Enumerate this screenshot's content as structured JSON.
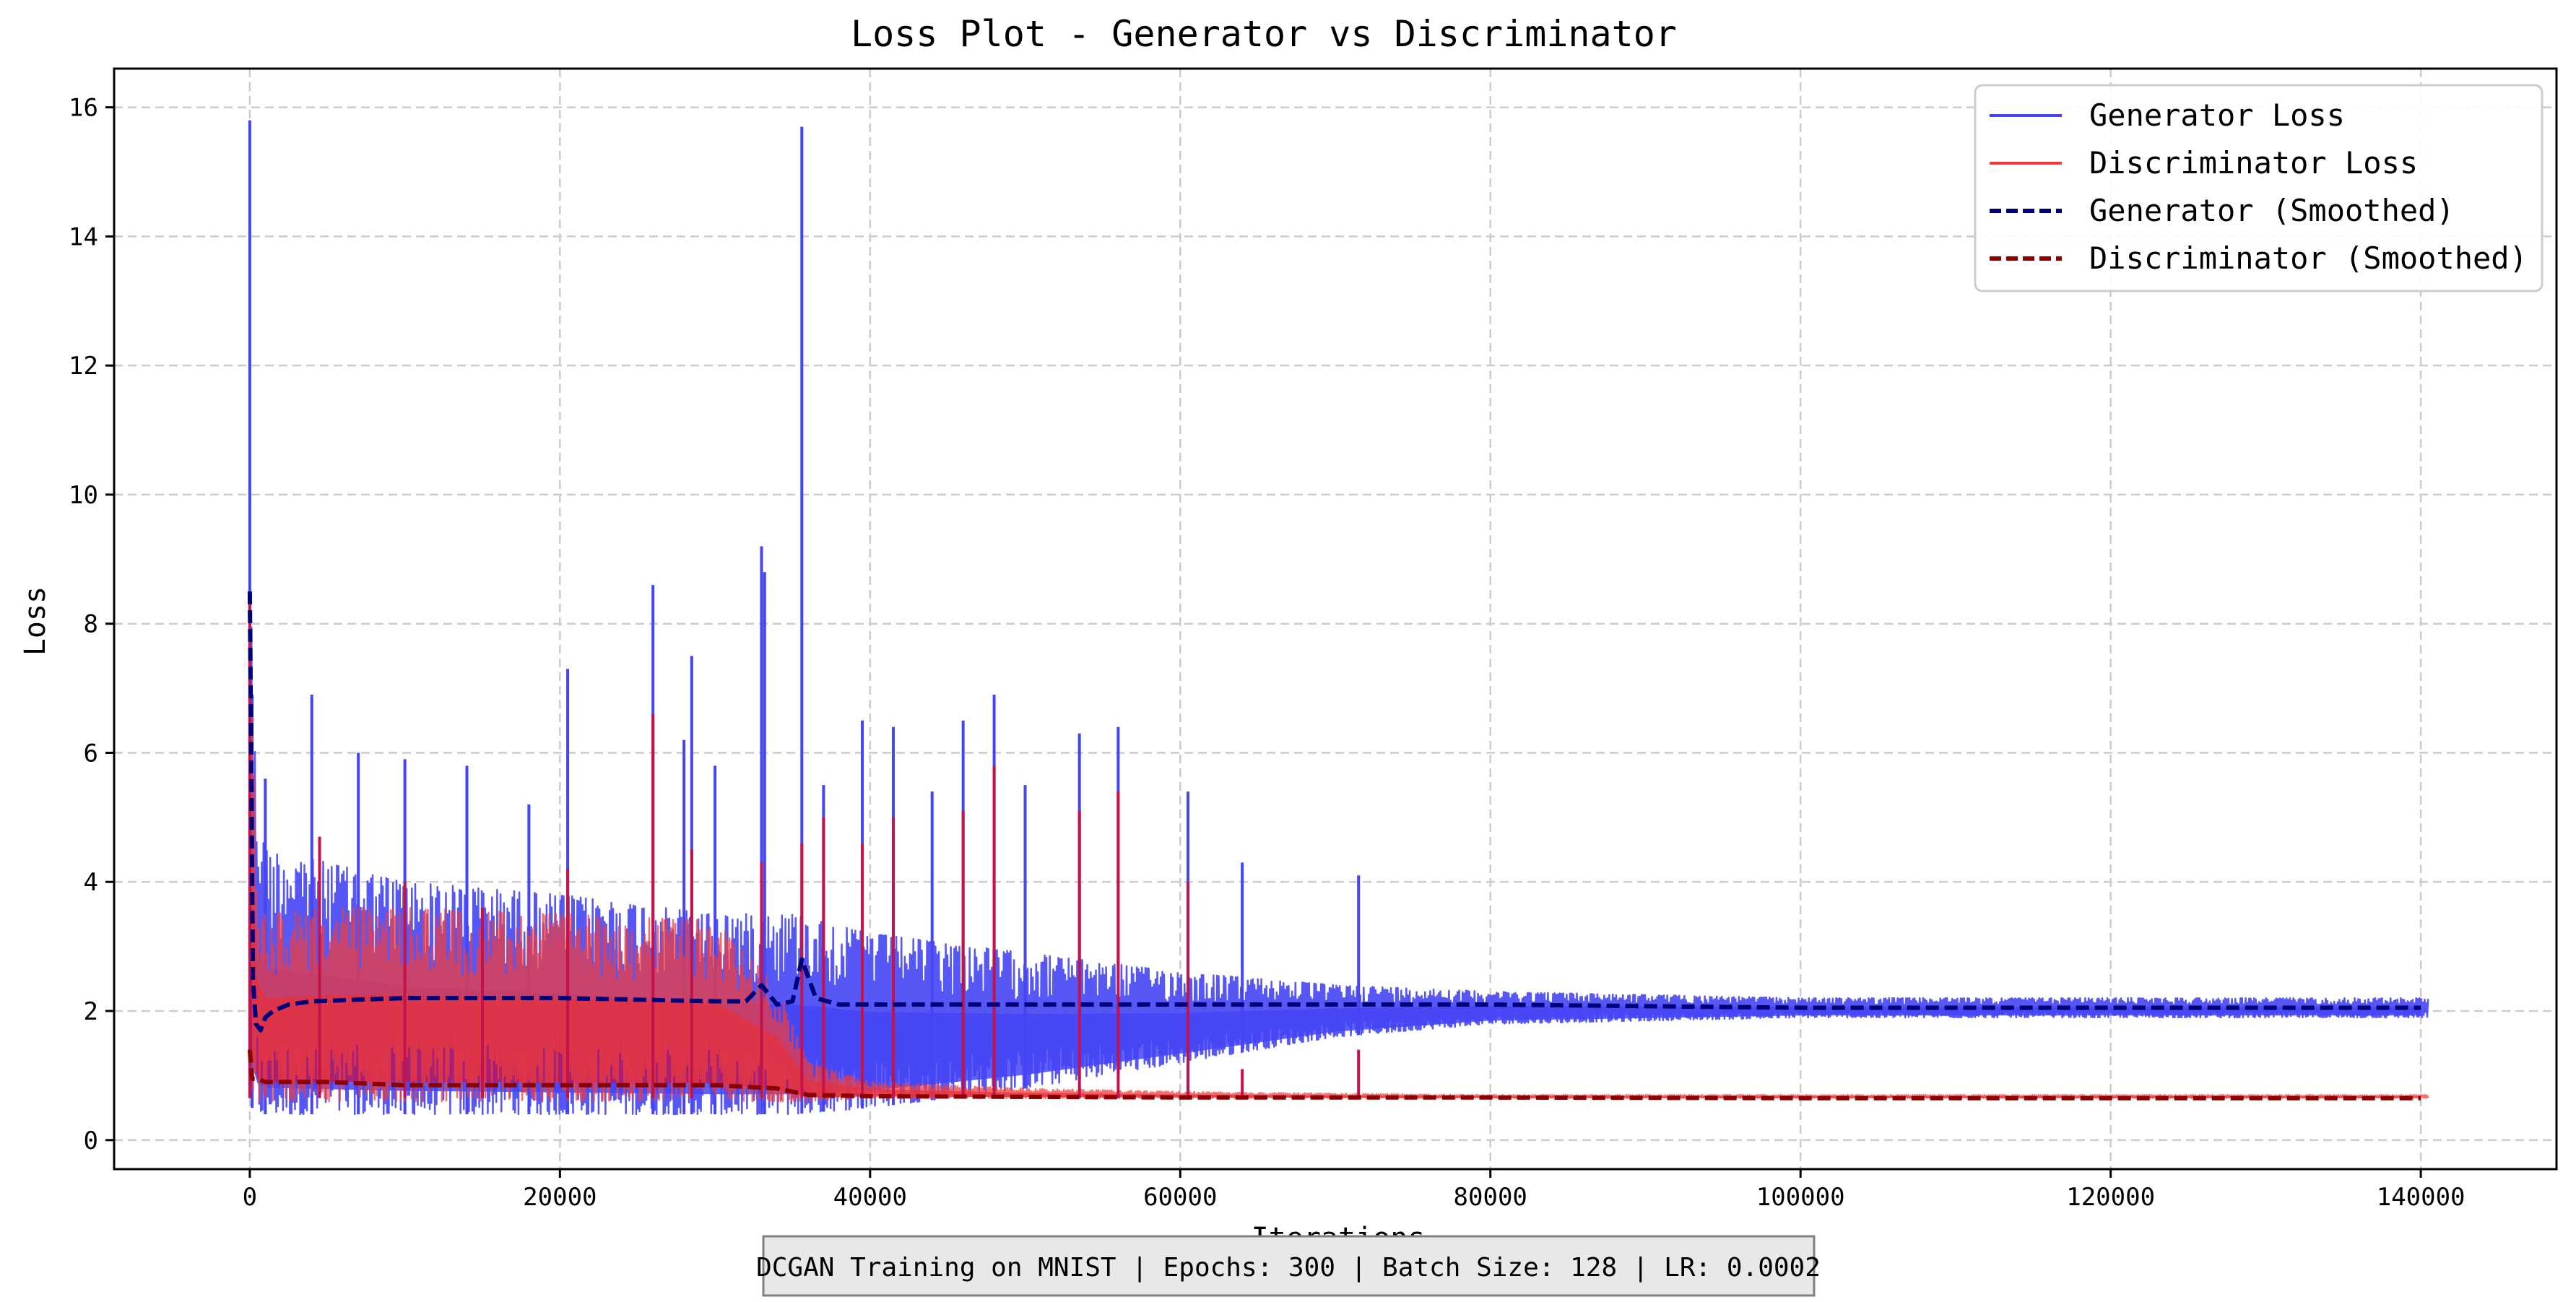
{
  "chart_data": {
    "type": "line",
    "title": "Loss Plot - Generator vs Discriminator",
    "xlabel": "Iterations",
    "ylabel": "Loss",
    "xlim": [
      -8750,
      148750
    ],
    "ylim": [
      -0.45,
      16.6
    ],
    "xticks": [
      0,
      20000,
      40000,
      60000,
      80000,
      100000,
      120000,
      140000
    ],
    "yticks": [
      0,
      2,
      4,
      6,
      8,
      10,
      12,
      14,
      16
    ],
    "grid": true,
    "legend_position": "top-right",
    "footer": "DCGAN Training on MNIST | Epochs: 300 | Batch Size: 128 | LR: 0.0002",
    "colors": {
      "generator": "#4545f5",
      "discriminator": "#f03c3c",
      "generator_smoothed": "#00007a",
      "discriminator_smoothed": "#8b0000",
      "overlap": "#c4124a",
      "grid": "#cccccc"
    },
    "series": [
      {
        "name": "Generator Loss",
        "style": "solid",
        "envelope": {
          "x": [
            0,
            150,
            500,
            1000,
            5000,
            10000,
            20000,
            30000,
            35000,
            40000,
            50000,
            60000,
            70000,
            80000,
            100000,
            120000,
            140000
          ],
          "low": [
            1.0,
            0.5,
            0.4,
            0.4,
            0.4,
            0.4,
            0.4,
            0.4,
            0.4,
            0.5,
            0.8,
            1.2,
            1.6,
            1.8,
            1.9,
            1.9,
            1.9
          ],
          "high": [
            15.0,
            7.0,
            5.2,
            4.5,
            4.3,
            4.0,
            3.8,
            3.5,
            3.5,
            3.2,
            2.9,
            2.6,
            2.4,
            2.3,
            2.2,
            2.2,
            2.2
          ]
        },
        "spikes": [
          [
            0,
            15.8
          ],
          [
            150,
            6.9
          ],
          [
            1000,
            5.6
          ],
          [
            4000,
            6.9
          ],
          [
            7000,
            6.0
          ],
          [
            10000,
            5.9
          ],
          [
            14000,
            5.8
          ],
          [
            18000,
            5.2
          ],
          [
            20500,
            7.3
          ],
          [
            26000,
            8.6
          ],
          [
            28000,
            6.2
          ],
          [
            28500,
            7.5
          ],
          [
            30000,
            5.8
          ],
          [
            33000,
            9.2
          ],
          [
            33200,
            8.8
          ],
          [
            35600,
            15.7
          ],
          [
            37000,
            5.5
          ],
          [
            39500,
            6.5
          ],
          [
            41500,
            6.4
          ],
          [
            44000,
            5.4
          ],
          [
            46000,
            6.5
          ],
          [
            48000,
            6.9
          ],
          [
            50000,
            5.5
          ],
          [
            53500,
            6.3
          ],
          [
            56000,
            6.4
          ],
          [
            60500,
            5.4
          ],
          [
            64000,
            4.3
          ],
          [
            71500,
            4.1
          ]
        ]
      },
      {
        "name": "Discriminator Loss",
        "style": "solid",
        "envelope": {
          "x": [
            0,
            500,
            1000,
            5000,
            10000,
            20000,
            30000,
            34000,
            36000,
            40000,
            50000,
            60000,
            70000,
            80000,
            100000,
            140000
          ],
          "low": [
            0.7,
            0.6,
            0.6,
            0.6,
            0.6,
            0.6,
            0.6,
            0.6,
            0.6,
            0.65,
            0.65,
            0.65,
            0.65,
            0.65,
            0.65,
            0.65
          ],
          "high": [
            8.5,
            4.0,
            3.5,
            3.6,
            3.6,
            3.5,
            3.4,
            2.4,
            1.2,
            0.9,
            0.8,
            0.75,
            0.72,
            0.7,
            0.7,
            0.7
          ]
        },
        "spikes": [
          [
            0,
            8.5
          ],
          [
            4500,
            4.7
          ],
          [
            10000,
            4.0
          ],
          [
            15000,
            3.6
          ],
          [
            20500,
            4.2
          ],
          [
            26000,
            6.6
          ],
          [
            28500,
            4.5
          ],
          [
            33000,
            4.3
          ],
          [
            35600,
            4.6
          ],
          [
            37000,
            5.0
          ],
          [
            39500,
            4.6
          ],
          [
            41500,
            5.0
          ],
          [
            46000,
            5.1
          ],
          [
            48000,
            5.8
          ],
          [
            53500,
            5.1
          ],
          [
            56000,
            5.4
          ],
          [
            60500,
            4.0
          ],
          [
            64000,
            1.1
          ],
          [
            71500,
            1.4
          ]
        ]
      },
      {
        "name": "Generator (Smoothed)",
        "style": "dashed",
        "x": [
          0,
          100,
          200,
          400,
          700,
          1000,
          1500,
          2500,
          4000,
          10000,
          20000,
          30000,
          32000,
          33000,
          34000,
          35000,
          35600,
          36500,
          38000,
          50000,
          60000,
          80000,
          100000,
          120000,
          140000
        ],
        "y": [
          8.5,
          5.8,
          2.5,
          1.8,
          1.7,
          1.9,
          2.0,
          2.1,
          2.15,
          2.2,
          2.2,
          2.15,
          2.15,
          2.4,
          2.1,
          2.15,
          2.8,
          2.2,
          2.1,
          2.1,
          2.1,
          2.1,
          2.05,
          2.05,
          2.05
        ]
      },
      {
        "name": "Discriminator (Smoothed)",
        "style": "dashed",
        "x": [
          0,
          150,
          500,
          1000,
          5000,
          10000,
          20000,
          30000,
          34000,
          36000,
          40000,
          60000,
          80000,
          100000,
          120000,
          140000
        ],
        "y": [
          1.4,
          0.95,
          0.95,
          0.9,
          0.9,
          0.85,
          0.85,
          0.85,
          0.8,
          0.7,
          0.68,
          0.66,
          0.66,
          0.65,
          0.65,
          0.65
        ]
      }
    ]
  }
}
